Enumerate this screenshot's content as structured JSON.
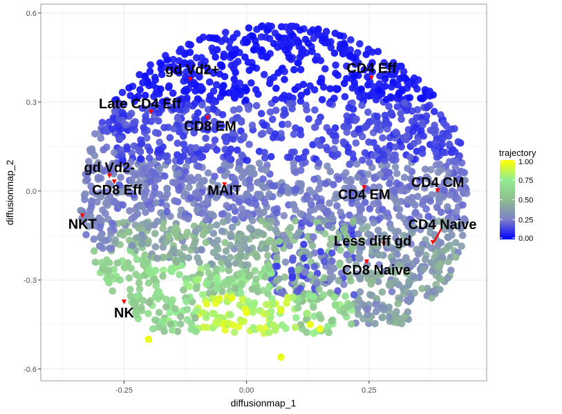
{
  "chart_data": {
    "type": "scatter",
    "title": "",
    "xlabel": "diffusionmap_1",
    "ylabel": "diffusionmap_2",
    "xlim": [
      -0.42,
      0.49
    ],
    "ylim": [
      -0.64,
      0.63
    ],
    "x_ticks": [
      -0.25,
      0.0,
      0.25
    ],
    "x_tick_labels": [
      "-0.25",
      "0.00",
      "0.25"
    ],
    "y_ticks": [
      -0.6,
      -0.3,
      0.0,
      0.3,
      0.6
    ],
    "y_tick_labels": [
      "-0.6",
      "-0.3",
      "0.0",
      "0.3",
      "0.6"
    ],
    "grid": true,
    "color_scale": {
      "title": "trajectory",
      "range": [
        0.0,
        1.0
      ],
      "stops": [
        "#0000ff",
        "#7b7fc9",
        "#8fbc8f",
        "#90ee90",
        "#ffff00"
      ],
      "ticks": [
        0.0,
        0.25,
        0.5,
        0.75,
        1.0
      ],
      "tick_labels": [
        "0.00",
        "0.25",
        "0.50",
        "0.75",
        "1.00"
      ]
    },
    "legend_position": "right",
    "annotations": [
      {
        "label": "gd Vd2+",
        "x": -0.115,
        "y": 0.375
      },
      {
        "label": "CD4 Eff",
        "x": 0.255,
        "y": 0.38
      },
      {
        "label": "Late CD4 Eff",
        "x": -0.195,
        "y": 0.265
      },
      {
        "label": "CD8 EM",
        "x": -0.08,
        "y": 0.245
      },
      {
        "label": "gd Vd2-",
        "x": -0.28,
        "y": 0.05
      },
      {
        "label": "CD8 Eff",
        "x": -0.27,
        "y": 0.03
      },
      {
        "label": "MAIT",
        "x": -0.045,
        "y": 0.02
      },
      {
        "label": "CD4 EM",
        "x": 0.24,
        "y": 0.01
      },
      {
        "label": "CD4 CM",
        "x": 0.39,
        "y": 0.0
      },
      {
        "label": "NKT",
        "x": -0.335,
        "y": -0.085
      },
      {
        "label": "CD4 Naive",
        "x": 0.38,
        "y": -0.175
      },
      {
        "label": "Less diff gd",
        "x": 0.28,
        "y": -0.18
      },
      {
        "label": "CD8 Naive",
        "x": 0.245,
        "y": -0.24
      },
      {
        "label": "NK",
        "x": -0.25,
        "y": -0.375
      }
    ]
  }
}
